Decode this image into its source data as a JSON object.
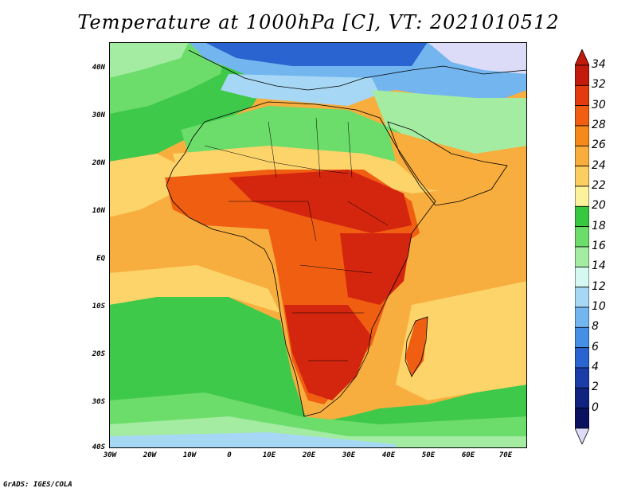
{
  "title": "Temperature at 1000hPa [C], VT: 2021010512",
  "credit": "GrADS: IGES/COLA",
  "lat_ticks": [
    "40N",
    "30N",
    "20N",
    "10N",
    "EQ",
    "10S",
    "20S",
    "30S",
    "40S"
  ],
  "lon_ticks": [
    "30W",
    "20W",
    "10W",
    "0",
    "10E",
    "20E",
    "30E",
    "40E",
    "50E",
    "60E",
    "70E"
  ],
  "colorbar": {
    "labels": [
      "34",
      "32",
      "30",
      "28",
      "26",
      "24",
      "22",
      "20",
      "18",
      "16",
      "14",
      "12",
      "10",
      "8",
      "6",
      "4",
      "2",
      "0"
    ],
    "colors_top_to_bottom": [
      "#c21a0b",
      "#e33a0e",
      "#f05e12",
      "#f58a1a",
      "#f9ad3c",
      "#fcce62",
      "#fbf29b",
      "#37c83f",
      "#6cdc6a",
      "#a4eca2",
      "#d5f9f0",
      "#a6d8f5",
      "#73b6ef",
      "#4490e6",
      "#2a64d0",
      "#1b3da8",
      "#102380",
      "#0a1260"
    ],
    "over_color": "#c21a0b",
    "under_color": "#dcdcf8"
  },
  "colors": {
    "ocean_warm": "#f7ae3e",
    "ocean_mid": "#fcd46a",
    "ocean_cool": "#3fc94a",
    "ocean_cold": "#a4eca2",
    "land_hot": "#d4250e",
    "land_warm": "#f0600f",
    "med_sea": "#7cc0ef",
    "europe_cold": "#2a64d0",
    "border_line": "#000000"
  }
}
